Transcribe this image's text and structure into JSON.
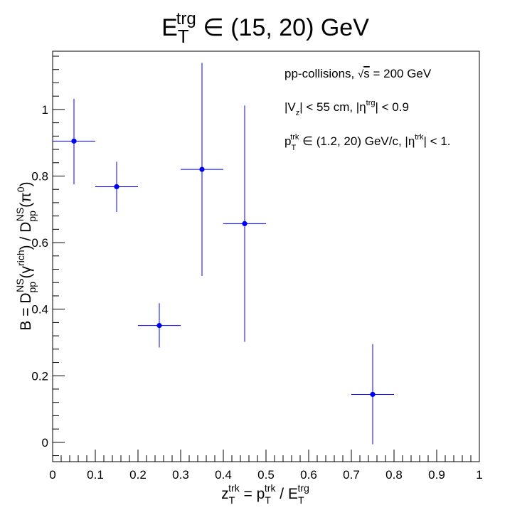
{
  "chart_data": {
    "type": "scatter",
    "title": {
      "base": "E",
      "sub": "T",
      "sup": "trg",
      "rest": " ∈ (15, 20) GeV"
    },
    "xlabel": {
      "base": "z",
      "sub": "T",
      "sup": "trk",
      "eq": " = p",
      "sub2": "T",
      "sup2": "trk",
      "div": " / E",
      "sub3": "T",
      "sup3": "trg"
    },
    "ylabel": {
      "a": "B = D",
      "sub1": "pp",
      "sup1": "NS",
      "b": "(γ",
      "sup2": "rich",
      "c": ") / D",
      "sub3": "pp",
      "sup3": "NS",
      "d": "(π",
      "sup4": "0",
      "e": ")"
    },
    "xlim": [
      0,
      1
    ],
    "ylim": [
      -0.058,
      1.175
    ],
    "x_ticks": [
      0,
      0.1,
      0.2,
      0.3,
      0.4,
      0.5,
      0.6,
      0.7,
      0.8,
      0.9,
      1
    ],
    "x_tick_labels": [
      "0",
      "0.1",
      "0.2",
      "0.3",
      "0.4",
      "0.5",
      "0.6",
      "0.7",
      "0.8",
      "0.9",
      "1"
    ],
    "y_ticks": [
      0,
      0.2,
      0.4,
      0.6,
      0.8,
      1
    ],
    "y_tick_labels": [
      "0",
      "0.2",
      "0.4",
      "0.6",
      "0.8",
      "1"
    ],
    "color": "#0000ff",
    "series": [
      {
        "points": [
          {
            "x": 0.05,
            "y": 0.905,
            "xerr": 0.05,
            "ylo": 0.775,
            "yhi": 1.032
          },
          {
            "x": 0.15,
            "y": 0.768,
            "xerr": 0.05,
            "ylo": 0.692,
            "yhi": 0.843
          },
          {
            "x": 0.25,
            "y": 0.351,
            "xerr": 0.05,
            "ylo": 0.285,
            "yhi": 0.418
          },
          {
            "x": 0.35,
            "y": 0.82,
            "xerr": 0.05,
            "ylo": 0.5,
            "yhi": 1.14
          },
          {
            "x": 0.45,
            "y": 0.657,
            "xerr": 0.05,
            "ylo": 0.302,
            "yhi": 1.012
          },
          {
            "x": 0.75,
            "y": 0.144,
            "xerr": 0.05,
            "ylo": -0.006,
            "yhi": 0.295
          }
        ]
      }
    ],
    "annotations": {
      "line1": {
        "a": "pp-collisions, ",
        "b": "s",
        "c": " = 200 GeV"
      },
      "line2": {
        "a": "|V",
        "sub": "z",
        "b": "| < 55 cm, |η",
        "sup": "trg",
        "c": "| < 0.9"
      },
      "line3": {
        "a": "p",
        "sub": "T",
        "sup": "trk",
        "b": " ∈ (1.2, 20) GeV/c, |η",
        "sup2": "trk",
        "c": "| < 1."
      }
    },
    "grid": false,
    "legend": "none"
  }
}
